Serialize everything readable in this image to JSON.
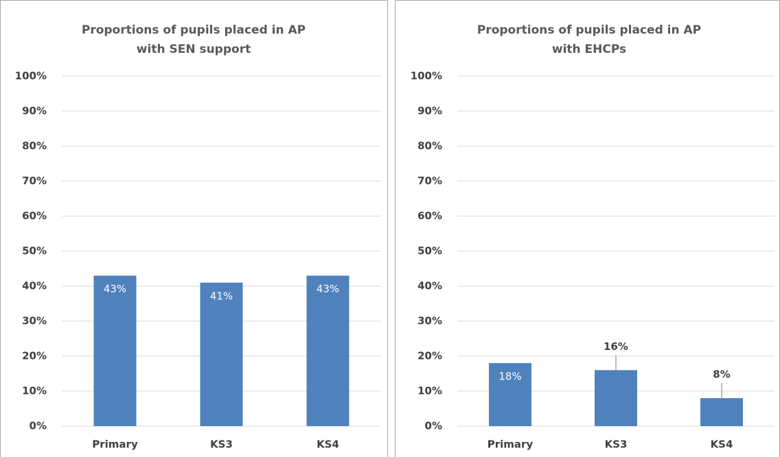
{
  "chart_data": [
    {
      "type": "bar",
      "title": "Proportions of pupils placed in AP with SEN support",
      "categories": [
        "Primary",
        "KS3",
        "KS4"
      ],
      "values": [
        43,
        41,
        43
      ],
      "value_labels": [
        "43%",
        "41%",
        "43%"
      ],
      "color": "#4f81bd",
      "ylim": [
        0,
        100
      ],
      "yticks": [
        {
          "value": 0,
          "label": "0%"
        },
        {
          "value": 10,
          "label": "10%"
        },
        {
          "value": 20,
          "label": "20%"
        },
        {
          "value": 30,
          "label": "30%"
        },
        {
          "value": 40,
          "label": "40%"
        },
        {
          "value": 50,
          "label": "50%"
        },
        {
          "value": 60,
          "label": "60%"
        },
        {
          "value": 70,
          "label": "70%"
        },
        {
          "value": 80,
          "label": "80%"
        },
        {
          "value": 90,
          "label": "90%"
        },
        {
          "value": 100,
          "label": "100%"
        }
      ],
      "grid": true
    },
    {
      "type": "bar",
      "title": "Proportions of pupils placed in AP with EHCPs",
      "categories": [
        "Primary",
        "KS3",
        "KS4"
      ],
      "values": [
        18,
        16,
        8
      ],
      "value_labels": [
        "18%",
        "16%",
        "8%"
      ],
      "color": "#4f81bd",
      "ylim": [
        0,
        100
      ],
      "yticks": [
        {
          "value": 0,
          "label": "0%"
        },
        {
          "value": 10,
          "label": "10%"
        },
        {
          "value": 20,
          "label": "20%"
        },
        {
          "value": 30,
          "label": "30%"
        },
        {
          "value": 40,
          "label": "40%"
        },
        {
          "value": 50,
          "label": "50%"
        },
        {
          "value": 60,
          "label": "60%"
        },
        {
          "value": 70,
          "label": "70%"
        },
        {
          "value": 80,
          "label": "80%"
        },
        {
          "value": 90,
          "label": "90%"
        },
        {
          "value": 100,
          "label": "100%"
        }
      ],
      "grid": true
    }
  ]
}
